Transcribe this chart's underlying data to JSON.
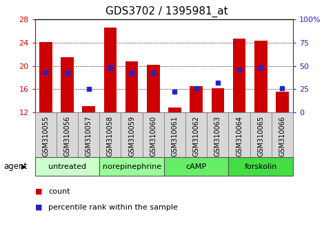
{
  "title": "GDS3702 / 1395981_at",
  "samples": [
    "GSM310055",
    "GSM310056",
    "GSM310057",
    "GSM310058",
    "GSM310059",
    "GSM310060",
    "GSM310061",
    "GSM310062",
    "GSM310063",
    "GSM310064",
    "GSM310065",
    "GSM310066"
  ],
  "count_values": [
    24.1,
    21.5,
    13.1,
    26.6,
    20.8,
    20.2,
    12.8,
    16.5,
    16.1,
    24.7,
    24.4,
    15.5
  ],
  "percentile_values_pct": [
    43,
    42,
    25,
    48,
    42,
    42,
    22,
    26,
    32,
    46,
    48,
    26
  ],
  "bar_color": "#cc0000",
  "dot_color": "#2222cc",
  "ylim_left": [
    12,
    28
  ],
  "yticks_left": [
    12,
    16,
    20,
    24,
    28
  ],
  "ylim_right": [
    0,
    100
  ],
  "yticks_right": [
    0,
    25,
    50,
    75,
    100
  ],
  "bar_width": 0.6,
  "groups": [
    {
      "label": "untreated",
      "start": 0,
      "end": 2,
      "color": "#ccffcc"
    },
    {
      "label": "norepinephrine",
      "start": 3,
      "end": 5,
      "color": "#99ff99"
    },
    {
      "label": "cAMP",
      "start": 6,
      "end": 8,
      "color": "#66ee66"
    },
    {
      "label": "forskolin",
      "start": 9,
      "end": 11,
      "color": "#44dd44"
    }
  ],
  "legend_count_color": "#cc0000",
  "legend_pct_color": "#2222cc",
  "legend_count_label": "count",
  "legend_pct_label": "percentile rank within the sample",
  "left_axis_color": "#cc0000",
  "right_axis_color": "#2222cc",
  "agent_label": "agent",
  "sample_box_color": "#d8d8d8",
  "title_fontsize": 11,
  "tick_fontsize": 8,
  "sample_fontsize": 7,
  "group_fontsize": 8,
  "legend_fontsize": 8
}
